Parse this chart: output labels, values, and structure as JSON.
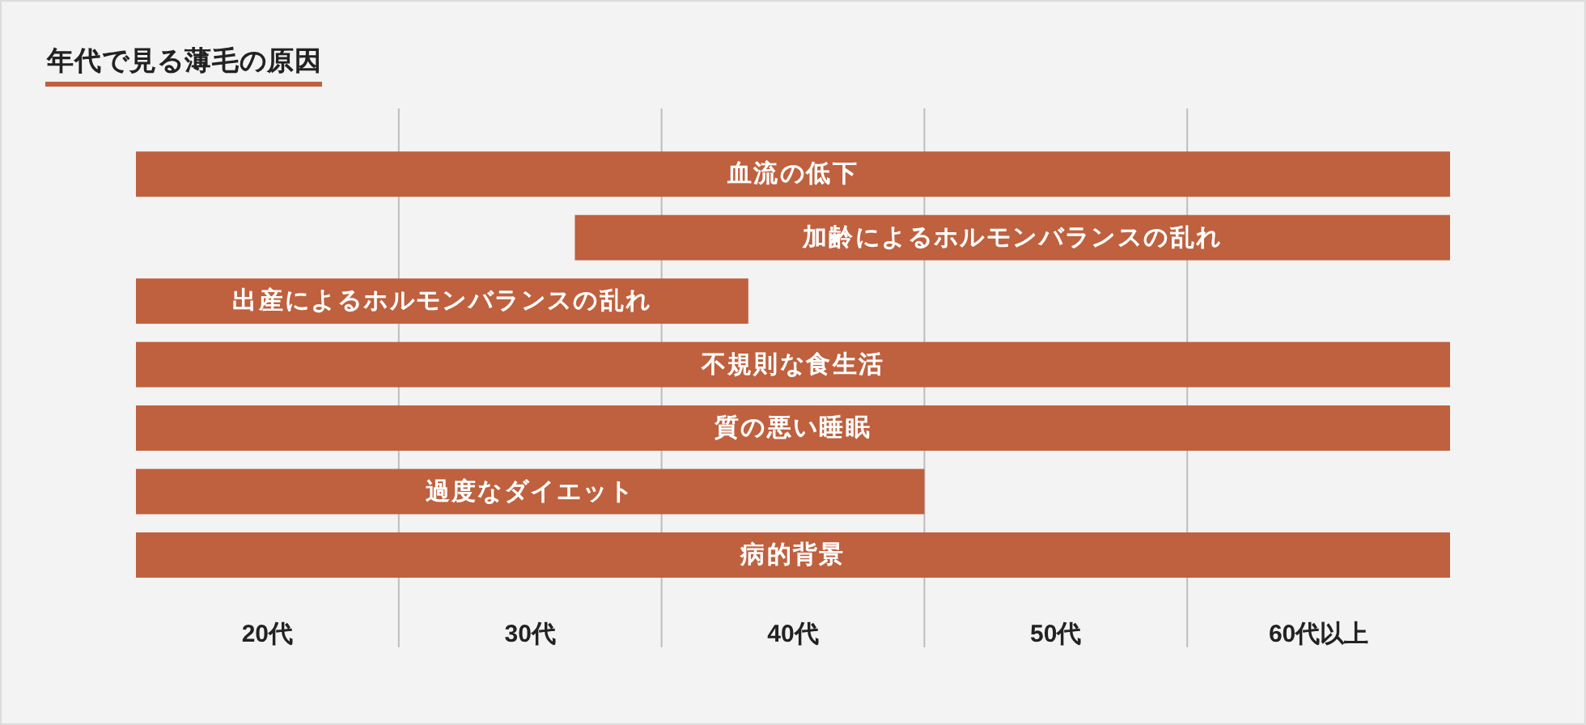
{
  "chart_data": {
    "type": "bar",
    "orientation": "horizontal",
    "title": "年代で見る薄毛の原因",
    "categories": [
      "血流の低下",
      "加齢によるホルモンバランスの乱れ",
      "出産によるホルモンバランスの乱れ",
      "不規則な食生活",
      "質の悪い睡眠",
      "過度なダイエット",
      "病的背景"
    ],
    "base": [
      15,
      31.7,
      15,
      15,
      15,
      15,
      15
    ],
    "values": [
      50,
      33.3,
      23.3,
      50,
      50,
      30,
      50
    ],
    "color": "#bf603e",
    "xlim": [
      15,
      65
    ],
    "xticks": [
      {
        "value": 20,
        "label": "20代"
      },
      {
        "value": 30,
        "label": "30代"
      },
      {
        "value": 40,
        "label": "40代"
      },
      {
        "value": 50,
        "label": "50代"
      },
      {
        "value": 60,
        "label": "60代以上"
      }
    ],
    "ref_lines": [
      {
        "axis": "x",
        "value": 25,
        "color": "#bdbdbd"
      },
      {
        "axis": "x",
        "value": 35,
        "color": "#bdbdbd"
      },
      {
        "axis": "x",
        "value": 45,
        "color": "#bdbdbd"
      },
      {
        "axis": "x",
        "value": 55,
        "color": "#bdbdbd"
      }
    ]
  }
}
